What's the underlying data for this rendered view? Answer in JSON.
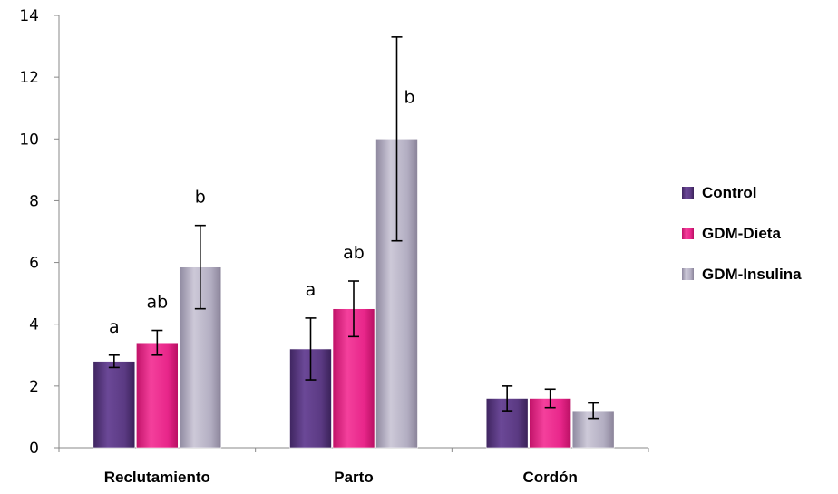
{
  "chart_data": {
    "type": "bar",
    "title": "",
    "xlabel": "",
    "ylabel": "",
    "ylim": [
      0,
      14
    ],
    "yticks": [
      0,
      2,
      4,
      6,
      8,
      10,
      12,
      14
    ],
    "categories": [
      "Reclutamiento",
      "Parto",
      "Cordón"
    ],
    "grid": false,
    "legend_position": "right",
    "series": [
      {
        "name": "Control",
        "color": "#5b3a83",
        "values": [
          2.8,
          3.2,
          1.6
        ],
        "errors": [
          0.2,
          1.0,
          0.4
        ],
        "letters": [
          "a",
          "a",
          ""
        ]
      },
      {
        "name": "GDM-Dieta",
        "color": "#e8268a",
        "values": [
          3.4,
          4.5,
          1.6
        ],
        "errors": [
          0.4,
          0.9,
          0.3
        ],
        "letters": [
          "ab",
          "ab",
          ""
        ]
      },
      {
        "name": "GDM-Insulina",
        "color": "#b3aec2",
        "values": [
          5.85,
          10.0,
          1.2
        ],
        "errors": [
          1.35,
          3.3,
          0.25
        ],
        "letters": [
          "b",
          "b",
          ""
        ]
      }
    ]
  }
}
